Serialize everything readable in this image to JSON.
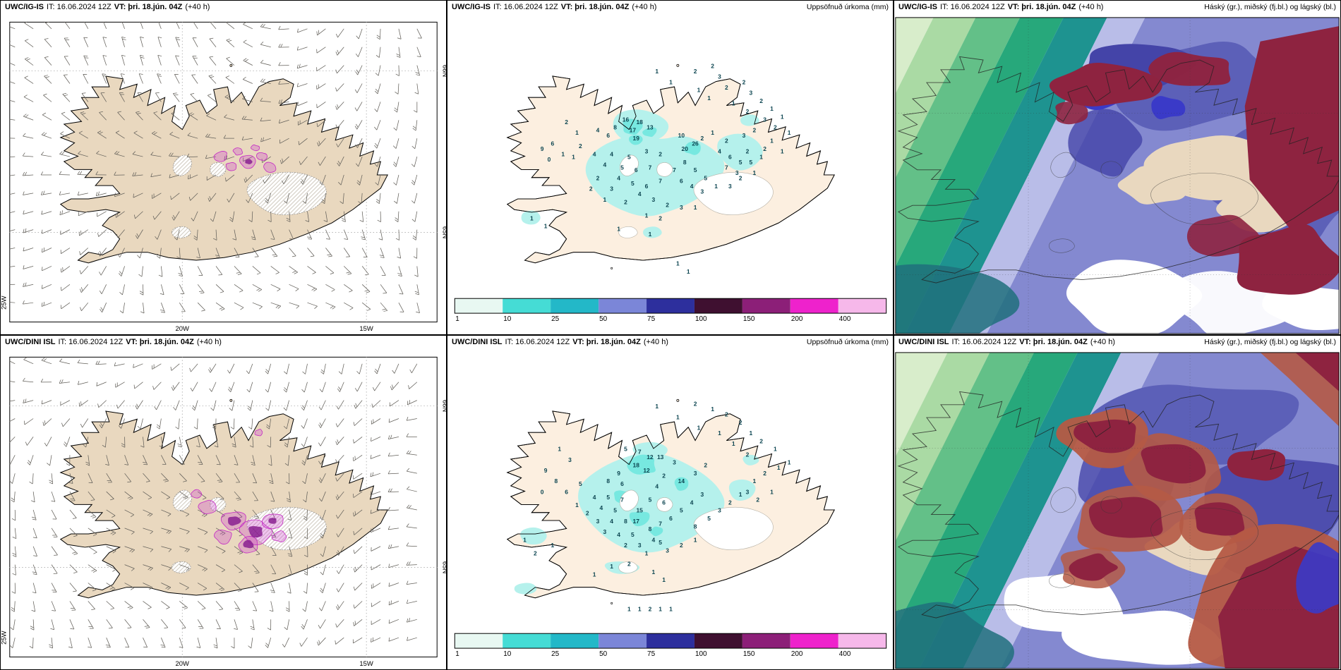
{
  "panels": [
    {
      "id": "wind-igis",
      "model": "UWC/IG-IS",
      "init": "IT: 16.06.2024 12Z",
      "valid": "VT: þri. 18.jún. 04Z",
      "lead": "(+40 h)",
      "right_label": ""
    },
    {
      "id": "precip-igis",
      "model": "UWC/IG-IS",
      "init": "IT: 16.06.2024 12Z",
      "valid": "VT: þri. 18.jún. 04Z",
      "lead": "(+40 h)",
      "right_label": "Uppsöfnuð úrkoma (mm)"
    },
    {
      "id": "cloud-igis",
      "model": "UWC/IG-IS",
      "init": "IT: 16.06.2024 12Z",
      "valid": "VT: þri. 18.jún. 04Z",
      "lead": "(+40 h)",
      "right_label": "Háský (gr.), miðský (fj.bl.) og lágský (bl.)"
    },
    {
      "id": "wind-dini",
      "model": "UWC/DINI ISL",
      "init": "IT: 16.06.2024 12Z",
      "valid": "VT: þri. 18.jún. 04Z",
      "lead": "(+40 h)",
      "right_label": ""
    },
    {
      "id": "precip-dini",
      "model": "UWC/DINI ISL",
      "init": "IT: 16.06.2024 12Z",
      "valid": "VT: þri. 18.jún. 04Z",
      "lead": "(+40 h)",
      "right_label": "Uppsöfnuð úrkoma (mm)"
    },
    {
      "id": "cloud-dini",
      "model": "UWC/DINI ISL",
      "init": "IT: 16.06.2024 12Z",
      "valid": "VT: þri. 18.jún. 04Z",
      "lead": "(+40 h)",
      "right_label": "Háský (gr.), miðský (fj.bl.) og lágský (bl.)"
    }
  ],
  "axis": {
    "lon": [
      "20W",
      "15W"
    ],
    "lat": [
      "66N",
      "65N"
    ],
    "left": "25W"
  },
  "colorbar": {
    "labels": [
      "1",
      "10",
      "25",
      "50",
      "75",
      "100",
      "150",
      "200",
      "400"
    ],
    "colors": [
      "#e8f8f2",
      "#45dcd5",
      "#23b8c8",
      "#7b86d8",
      "#2d2f9d",
      "#3f1030",
      "#8c1f78",
      "#ee22cc",
      "#f6b8ea"
    ]
  },
  "colors": {
    "land": "#e9d8bf",
    "land_precip": "#fcefe0",
    "coast": "#000000",
    "barb": "#63605a",
    "precip_light": "#b5f1ec",
    "precip_mid": "#77e8e0",
    "number": "#0b4450",
    "magenta": "#c42ac4",
    "magenta_dark": "#8a2090",
    "green_pale": "#d8edcb",
    "green_light": "#aadaa4",
    "green_mid": "#63c088",
    "green_deep": "#27a87b",
    "teal": "#1e9390",
    "teal_deep": "#20707c",
    "lavender": "#b9bde8",
    "periwinkle": "#8489d0",
    "blue_mid": "#5c60b8",
    "blue_deep": "#4444a8",
    "blue_bright": "#3a3ac8",
    "maroon": "#8e2340",
    "red_light": "#b55a45",
    "white": "#ffffff"
  },
  "precip_numbers": {
    "igis": [
      [
        "1",
        46,
        12
      ],
      [
        "2",
        57,
        12
      ],
      [
        "2",
        62,
        10
      ],
      [
        "1",
        50,
        16
      ],
      [
        "3",
        64,
        14
      ],
      [
        "2",
        66,
        18
      ],
      [
        "1",
        58,
        19
      ],
      [
        "2",
        71,
        16
      ],
      [
        "1",
        61,
        22
      ],
      [
        "3",
        73,
        20
      ],
      [
        "2",
        76,
        23
      ],
      [
        "1",
        68,
        24
      ],
      [
        "1",
        79,
        26
      ],
      [
        "2",
        72,
        27
      ],
      [
        "3",
        77,
        30
      ],
      [
        "1",
        82,
        29
      ],
      [
        "2",
        80,
        33
      ],
      [
        "1",
        84,
        35
      ],
      [
        "2",
        20,
        31
      ],
      [
        "1",
        23,
        35
      ],
      [
        "6",
        16,
        39
      ],
      [
        "9",
        13,
        41
      ],
      [
        "0",
        15,
        45
      ],
      [
        "1",
        19,
        43
      ],
      [
        "16",
        37,
        30
      ],
      [
        "18",
        41,
        31
      ],
      [
        "8",
        34,
        33
      ],
      [
        "17",
        39,
        34
      ],
      [
        "13",
        44,
        33
      ],
      [
        "6",
        32,
        36
      ],
      [
        "19",
        40,
        37
      ],
      [
        "4",
        29,
        34
      ],
      [
        "10",
        53,
        36
      ],
      [
        "26",
        57,
        39
      ],
      [
        "20",
        54,
        41
      ],
      [
        "2",
        59,
        37
      ],
      [
        "1",
        62,
        35
      ],
      [
        "2",
        24,
        40
      ],
      [
        "4",
        28,
        43
      ],
      [
        "1",
        22,
        44
      ],
      [
        "4",
        33,
        43
      ],
      [
        "5",
        38,
        44
      ],
      [
        "3",
        43,
        42
      ],
      [
        "2",
        47,
        43
      ],
      [
        "4",
        31,
        47
      ],
      [
        "5",
        36,
        48
      ],
      [
        "6",
        40,
        49
      ],
      [
        "7",
        44,
        48
      ],
      [
        "4",
        35,
        52
      ],
      [
        "2",
        29,
        52
      ],
      [
        "5",
        39,
        54
      ],
      [
        "6",
        43,
        55
      ],
      [
        "7",
        47,
        53
      ],
      [
        "3",
        33,
        56
      ],
      [
        "2",
        27,
        56
      ],
      [
        "4",
        41,
        58
      ],
      [
        "3",
        45,
        60
      ],
      [
        "2",
        37,
        61
      ],
      [
        "1",
        31,
        60
      ],
      [
        "7",
        51,
        49
      ],
      [
        "8",
        54,
        46
      ],
      [
        "5",
        57,
        49
      ],
      [
        "6",
        53,
        53
      ],
      [
        "4",
        56,
        55
      ],
      [
        "5",
        60,
        52
      ],
      [
        "3",
        59,
        57
      ],
      [
        "1",
        63,
        55
      ],
      [
        "2",
        49,
        62
      ],
      [
        "3",
        53,
        63
      ],
      [
        "1",
        57,
        63
      ],
      [
        "1",
        43,
        66
      ],
      [
        "2",
        47,
        67
      ],
      [
        "2",
        66,
        38
      ],
      [
        "4",
        64,
        42
      ],
      [
        "6",
        67,
        44
      ],
      [
        "5",
        70,
        46
      ],
      [
        "7",
        66,
        48
      ],
      [
        "3",
        69,
        50
      ],
      [
        "5",
        73,
        46
      ],
      [
        "2",
        72,
        42
      ],
      [
        "1",
        76,
        44
      ],
      [
        "3",
        71,
        36
      ],
      [
        "2",
        74,
        34
      ],
      [
        "1",
        79,
        38
      ],
      [
        "2",
        77,
        41
      ],
      [
        "1",
        82,
        42
      ],
      [
        "3",
        67,
        55
      ],
      [
        "2",
        70,
        52
      ],
      [
        "1",
        74,
        50
      ],
      [
        "1",
        35,
        71
      ],
      [
        "1",
        44,
        73
      ],
      [
        "1",
        10,
        67
      ],
      [
        "1",
        14,
        70
      ],
      [
        "1",
        52,
        84
      ],
      [
        "1",
        55,
        87
      ]
    ],
    "dini": [
      [
        "1",
        46,
        12
      ],
      [
        "2",
        57,
        11
      ],
      [
        "1",
        62,
        13
      ],
      [
        "1",
        52,
        16
      ],
      [
        "2",
        66,
        15
      ],
      [
        "1",
        58,
        20
      ],
      [
        "2",
        70,
        18
      ],
      [
        "1",
        64,
        22
      ],
      [
        "1",
        73,
        22
      ],
      [
        "2",
        76,
        25
      ],
      [
        "1",
        80,
        28
      ],
      [
        "1",
        68,
        26
      ],
      [
        "2",
        72,
        30
      ],
      [
        "1",
        84,
        33
      ],
      [
        "1",
        18,
        28
      ],
      [
        "3",
        21,
        32
      ],
      [
        "9",
        14,
        36
      ],
      [
        "8",
        17,
        40
      ],
      [
        "6",
        20,
        44
      ],
      [
        "0",
        13,
        44
      ],
      [
        "5",
        24,
        41
      ],
      [
        "5",
        37,
        28
      ],
      [
        "7",
        41,
        29
      ],
      [
        "12",
        44,
        31
      ],
      [
        "13",
        47,
        31
      ],
      [
        "3",
        51,
        33
      ],
      [
        "18",
        40,
        34
      ],
      [
        "12",
        43,
        36
      ],
      [
        "2",
        48,
        38
      ],
      [
        "9",
        35,
        37
      ],
      [
        "8",
        32,
        40
      ],
      [
        "6",
        36,
        41
      ],
      [
        "14",
        53,
        40
      ],
      [
        "4",
        46,
        42
      ],
      [
        "3",
        57,
        37
      ],
      [
        "2",
        60,
        34
      ],
      [
        "15",
        41,
        51
      ],
      [
        "17",
        40,
        55
      ],
      [
        "4",
        28,
        46
      ],
      [
        "5",
        32,
        46
      ],
      [
        "7",
        36,
        47
      ],
      [
        "4",
        30,
        50
      ],
      [
        "5",
        34,
        51
      ],
      [
        "8",
        37,
        55
      ],
      [
        "4",
        33,
        55
      ],
      [
        "3",
        29,
        55
      ],
      [
        "2",
        26,
        52
      ],
      [
        "1",
        23,
        49
      ],
      [
        "3",
        31,
        59
      ],
      [
        "4",
        35,
        60
      ],
      [
        "5",
        39,
        60
      ],
      [
        "8",
        44,
        58
      ],
      [
        "7",
        47,
        56
      ],
      [
        "6",
        50,
        54
      ],
      [
        "5",
        53,
        51
      ],
      [
        "4",
        56,
        48
      ],
      [
        "3",
        59,
        45
      ],
      [
        "6",
        48,
        48
      ],
      [
        "5",
        44,
        47
      ],
      [
        "4",
        45,
        62
      ],
      [
        "5",
        47,
        63
      ],
      [
        "3",
        41,
        64
      ],
      [
        "2",
        37,
        64
      ],
      [
        "1",
        43,
        67
      ],
      [
        "3",
        49,
        66
      ],
      [
        "2",
        53,
        64
      ],
      [
        "1",
        57,
        62
      ],
      [
        "8",
        57,
        57
      ],
      [
        "5",
        61,
        54
      ],
      [
        "3",
        64,
        51
      ],
      [
        "2",
        67,
        48
      ],
      [
        "1",
        70,
        45
      ],
      [
        "1",
        74,
        40
      ],
      [
        "2",
        77,
        37
      ],
      [
        "1",
        81,
        35
      ],
      [
        "3",
        72,
        44
      ],
      [
        "2",
        75,
        47
      ],
      [
        "1",
        79,
        44
      ],
      [
        "1",
        8,
        62
      ],
      [
        "1",
        16,
        64
      ],
      [
        "2",
        11,
        67
      ],
      [
        "1",
        33,
        72
      ],
      [
        "2",
        38,
        71
      ],
      [
        "1",
        45,
        74
      ],
      [
        "1",
        28,
        75
      ],
      [
        "1",
        48,
        77
      ],
      [
        "1",
        38,
        88
      ],
      [
        "1",
        41,
        88
      ],
      [
        "2",
        44,
        88
      ],
      [
        "1",
        47,
        88
      ],
      [
        "1",
        50,
        88
      ]
    ]
  }
}
